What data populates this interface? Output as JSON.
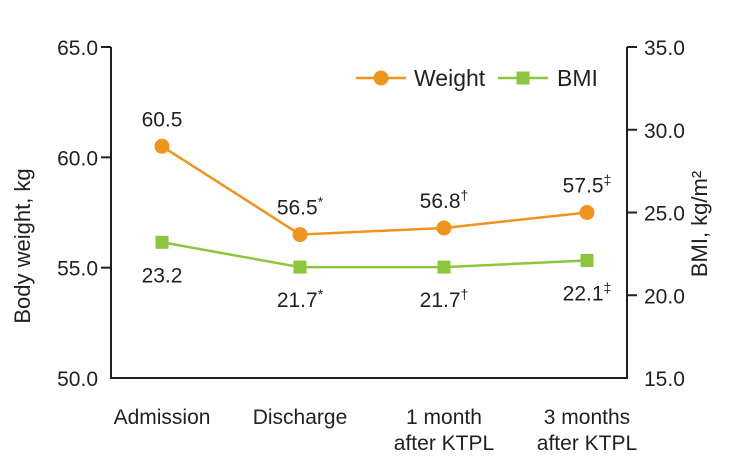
{
  "figure": {
    "background": "#ffffff",
    "text_color": "#231f20",
    "axis_color": "#231f20"
  },
  "chart_data": {
    "type": "line",
    "categories": [
      [
        "Admission"
      ],
      [
        "Discharge"
      ],
      [
        "1 month",
        "after KTPL"
      ],
      [
        "3 months",
        "after KTPL"
      ]
    ],
    "series": [
      {
        "name": "Weight",
        "axis": "left",
        "color": "#ef941f",
        "marker": "circle",
        "values": [
          60.5,
          56.5,
          56.8,
          57.5
        ],
        "labels": [
          {
            "text": "60.5",
            "sup": ""
          },
          {
            "text": "56.5",
            "sup": "*"
          },
          {
            "text": "56.8",
            "sup": "†"
          },
          {
            "text": "57.5",
            "sup": "‡"
          }
        ],
        "label_position": "above"
      },
      {
        "name": "BMI",
        "axis": "right",
        "color": "#8cc63f",
        "marker": "square",
        "values": [
          23.2,
          21.7,
          21.7,
          22.1
        ],
        "labels": [
          {
            "text": "23.2",
            "sup": ""
          },
          {
            "text": "21.7",
            "sup": "*"
          },
          {
            "text": "21.7",
            "sup": "†"
          },
          {
            "text": "22.1",
            "sup": "‡"
          }
        ],
        "label_position": "below"
      }
    ],
    "left_axis": {
      "title": "Body weight, kg",
      "min": 50,
      "max": 65,
      "tick_values": [
        65,
        60,
        55,
        50
      ],
      "tick_labels": [
        "65.0",
        "60.0",
        "55.0",
        "50.0"
      ]
    },
    "right_axis": {
      "title": "BMI, kg/m²",
      "min": 15,
      "max": 35,
      "tick_values": [
        35,
        30,
        25,
        20,
        15
      ],
      "tick_labels": [
        "35.0",
        "30.0",
        "25.0",
        "20.0",
        "15.0"
      ]
    },
    "legend": [
      {
        "label": "Weight",
        "color": "#ef941f",
        "marker": "circle"
      },
      {
        "label": "BMI",
        "color": "#8cc63f",
        "marker": "square"
      }
    ],
    "grid": false,
    "legend_position": "top-right-inside"
  }
}
